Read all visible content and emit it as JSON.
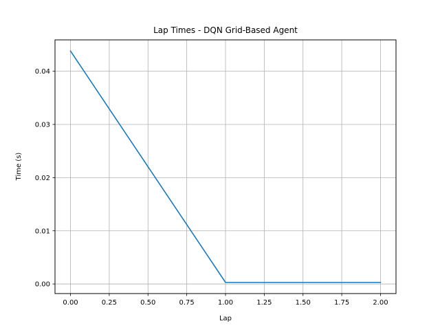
{
  "chart_data": {
    "type": "line",
    "title": "Lap Times - DQN Grid-Based Agent",
    "xlabel": "Lap",
    "ylabel": "Time (s)",
    "xlim": [
      -0.1,
      2.1
    ],
    "ylim": [
      -0.0018,
      0.0459
    ],
    "x_ticks": [
      0.0,
      0.25,
      0.5,
      0.75,
      1.0,
      1.25,
      1.5,
      1.75,
      2.0
    ],
    "x_tick_labels": [
      "0.00",
      "0.25",
      "0.50",
      "0.75",
      "1.00",
      "1.25",
      "1.50",
      "1.75",
      "2.00"
    ],
    "y_ticks": [
      0.0,
      0.01,
      0.02,
      0.03,
      0.04
    ],
    "y_tick_labels": [
      "0.00",
      "0.01",
      "0.02",
      "0.03",
      "0.04"
    ],
    "grid": true,
    "series": [
      {
        "color": "#1f77b4",
        "x": [
          0,
          1,
          2
        ],
        "y": [
          0.0438,
          0.0003,
          0.0003
        ]
      }
    ]
  }
}
